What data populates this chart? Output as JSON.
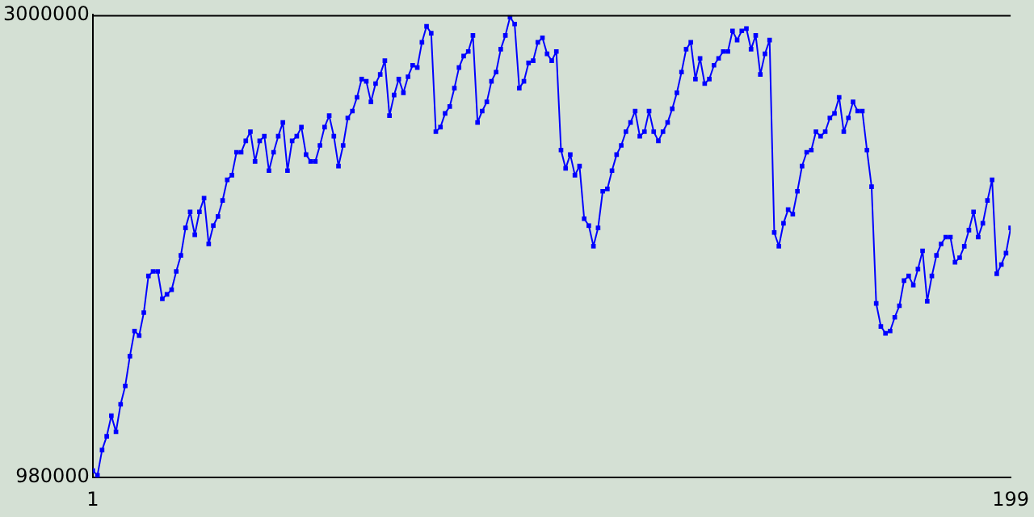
{
  "chart_data": {
    "type": "line",
    "marker": "square",
    "color": "#0000ff",
    "x": [
      1,
      2,
      3,
      4,
      5,
      6,
      7,
      8,
      9,
      10,
      11,
      12,
      13,
      14,
      15,
      16,
      17,
      18,
      19,
      20,
      21,
      22,
      23,
      24,
      25,
      26,
      27,
      28,
      29,
      30,
      31,
      32,
      33,
      34,
      35,
      36,
      37,
      38,
      39,
      40,
      41,
      42,
      43,
      44,
      45,
      46,
      47,
      48,
      49,
      50,
      51,
      52,
      53,
      54,
      55,
      56,
      57,
      58,
      59,
      60,
      61,
      62,
      63,
      64,
      65,
      66,
      67,
      68,
      69,
      70,
      71,
      72,
      73,
      74,
      75,
      76,
      77,
      78,
      79,
      80,
      81,
      82,
      83,
      84,
      85,
      86,
      87,
      88,
      89,
      90,
      91,
      92,
      93,
      94,
      95,
      96,
      97,
      98,
      99,
      100,
      101,
      102,
      103,
      104,
      105,
      106,
      107,
      108,
      109,
      110,
      111,
      112,
      113,
      114,
      115,
      116,
      117,
      118,
      119,
      120,
      121,
      122,
      123,
      124,
      125,
      126,
      127,
      128,
      129,
      130,
      131,
      132,
      133,
      134,
      135,
      136,
      137,
      138,
      139,
      140,
      141,
      142,
      143,
      144,
      145,
      146,
      147,
      148,
      149,
      150,
      151,
      152,
      153,
      154,
      155,
      156,
      157,
      158,
      159,
      160,
      161,
      162,
      163,
      164,
      165,
      166,
      167,
      168,
      169,
      170,
      171,
      172,
      173,
      174,
      175,
      176,
      177,
      178,
      179,
      180,
      181,
      182,
      183,
      184,
      185,
      186,
      187,
      188,
      189,
      190,
      191,
      192,
      193,
      194,
      195,
      196,
      197,
      198,
      199
    ],
    "values": [
      1010000,
      990000,
      1100000,
      1160000,
      1250000,
      1180000,
      1300000,
      1380000,
      1510000,
      1620000,
      1600000,
      1700000,
      1860000,
      1880000,
      1880000,
      1760000,
      1780000,
      1800000,
      1880000,
      1950000,
      2070000,
      2140000,
      2040000,
      2140000,
      2200000,
      2000000,
      2080000,
      2120000,
      2190000,
      2280000,
      2300000,
      2400000,
      2400000,
      2450000,
      2490000,
      2360000,
      2450000,
      2470000,
      2320000,
      2400000,
      2470000,
      2530000,
      2320000,
      2450000,
      2470000,
      2510000,
      2390000,
      2360000,
      2360000,
      2430000,
      2510000,
      2560000,
      2470000,
      2340000,
      2430000,
      2550000,
      2580000,
      2640000,
      2720000,
      2710000,
      2620000,
      2700000,
      2740000,
      2800000,
      2560000,
      2650000,
      2720000,
      2660000,
      2730000,
      2780000,
      2770000,
      2880000,
      2950000,
      2920000,
      2490000,
      2510000,
      2570000,
      2600000,
      2680000,
      2770000,
      2820000,
      2840000,
      2910000,
      2530000,
      2580000,
      2620000,
      2710000,
      2750000,
      2850000,
      2910000,
      2990000,
      2960000,
      2680000,
      2710000,
      2790000,
      2800000,
      2880000,
      2900000,
      2830000,
      2800000,
      2840000,
      2410000,
      2330000,
      2390000,
      2300000,
      2340000,
      2110000,
      2080000,
      1990000,
      2070000,
      2230000,
      2240000,
      2320000,
      2390000,
      2430000,
      2490000,
      2530000,
      2580000,
      2470000,
      2490000,
      2580000,
      2490000,
      2450000,
      2490000,
      2530000,
      2590000,
      2660000,
      2750000,
      2850000,
      2880000,
      2720000,
      2810000,
      2700000,
      2720000,
      2780000,
      2810000,
      2840000,
      2840000,
      2930000,
      2890000,
      2930000,
      2940000,
      2850000,
      2910000,
      2740000,
      2830000,
      2890000,
      2050000,
      1990000,
      2090000,
      2150000,
      2130000,
      2230000,
      2340000,
      2400000,
      2410000,
      2490000,
      2470000,
      2490000,
      2550000,
      2570000,
      2640000,
      2490000,
      2550000,
      2620000,
      2580000,
      2580000,
      2410000,
      2250000,
      1740000,
      1640000,
      1610000,
      1620000,
      1680000,
      1730000,
      1840000,
      1860000,
      1820000,
      1890000,
      1970000,
      1750000,
      1860000,
      1950000,
      2000000,
      2030000,
      2030000,
      1920000,
      1940000,
      1990000,
      2060000,
      2140000,
      2030000,
      2090000,
      2190000,
      2280000,
      1870000,
      1910000,
      1960000,
      2070000
    ],
    "xlim": [
      1,
      199
    ],
    "xticks": [
      1,
      199
    ],
    "ylim": [
      980000,
      3000000
    ],
    "yticks": [
      980000,
      3000000
    ]
  }
}
